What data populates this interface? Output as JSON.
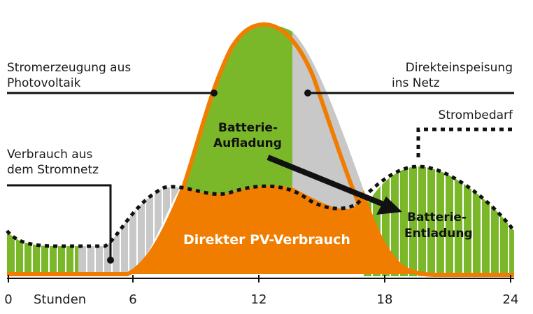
{
  "labels": {
    "pv_line1": "Stromerzeugung aus",
    "pv_line2": "Photovoltaik",
    "feed_line1": "Direkteinspeisung",
    "feed_line2": "ins Netz",
    "demand": "Strombedarf",
    "grid_line1": "Verbrauch aus",
    "grid_line2": "dem Stromnetz",
    "charge_line1": "Batterie-",
    "charge_line2": "Aufladung",
    "discharge_line1": "Batterie-",
    "discharge_line2": "Entladung",
    "direct": "Direkter PV-Verbrauch"
  },
  "axis": {
    "unit": "Stunden",
    "ticks": [
      "0",
      "6",
      "12",
      "18",
      "24"
    ]
  },
  "colors": {
    "pv_orange": "#f07d00",
    "battery_green": "#7ab82a",
    "grid_gray": "#c8c8c8",
    "ink": "#111111"
  }
}
